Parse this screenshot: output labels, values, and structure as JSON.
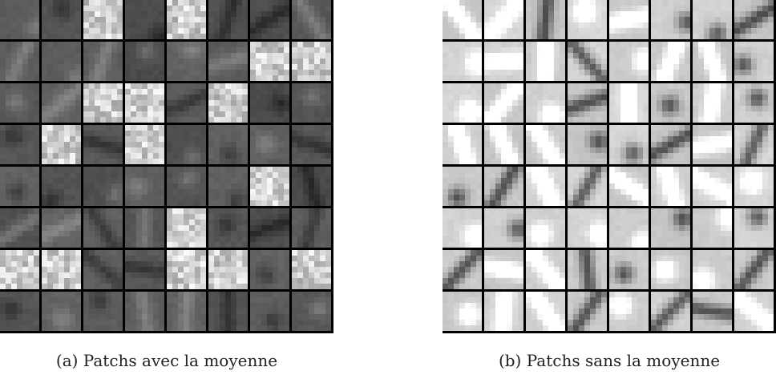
{
  "figure": {
    "panels": [
      {
        "id": "a",
        "caption": "(a) Patchs avec la moyenne",
        "grid": {
          "rows": 8,
          "cols": 8
        },
        "tone": "dark",
        "bright_patches": [
          [
            0,
            2
          ],
          [
            0,
            4
          ],
          [
            1,
            6
          ],
          [
            1,
            7
          ],
          [
            2,
            2
          ],
          [
            2,
            3
          ],
          [
            2,
            5
          ],
          [
            3,
            1
          ],
          [
            3,
            3
          ],
          [
            4,
            6
          ],
          [
            5,
            4
          ],
          [
            6,
            0
          ],
          [
            6,
            1
          ],
          [
            6,
            4
          ],
          [
            6,
            5
          ],
          [
            6,
            7
          ]
        ]
      },
      {
        "id": "b",
        "caption": "(b) Patchs sans la moyenne",
        "grid": {
          "rows": 8,
          "cols": 8
        },
        "tone": "light",
        "bright_patches": []
      }
    ]
  },
  "colors": {
    "background": "#ffffff",
    "separator": "#000000",
    "caption_text": "#222222"
  }
}
